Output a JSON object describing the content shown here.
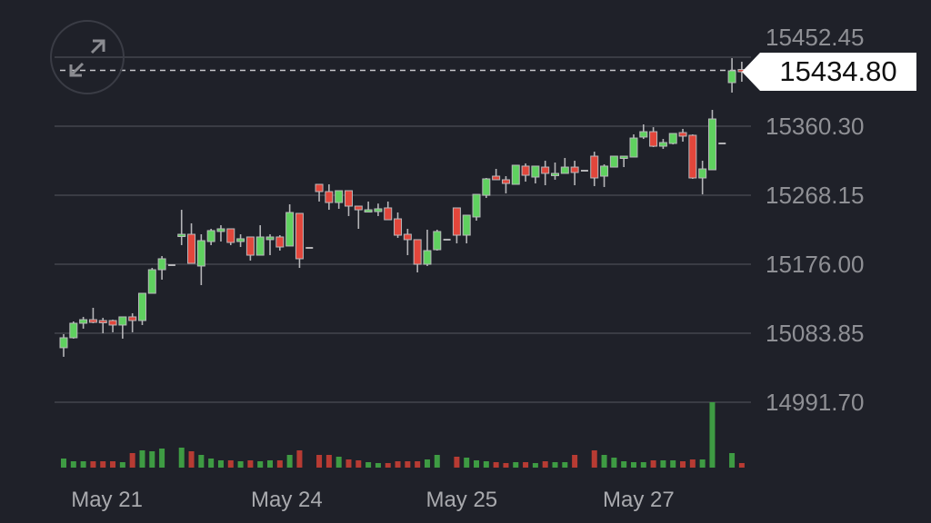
{
  "chart_data": {
    "type": "candlestick",
    "title": "",
    "colors": {
      "up": "#5fd15f",
      "down": "#e2463b",
      "wick": "#b5b5b8",
      "volume_up": "#3e9b43",
      "volume_down": "#b73b33",
      "grid": "#44464e",
      "background": "#1f2129"
    },
    "y_ticks": [
      "15452.45",
      "15360.30",
      "15268.15",
      "15176.00",
      "15083.85",
      "14991.70"
    ],
    "y_tick_values": [
      15452.45,
      15360.3,
      15268.15,
      15176.0,
      15083.85,
      14991.7
    ],
    "x_ticks": [
      {
        "label": "May 21",
        "index": 4.4
      },
      {
        "label": "May 24",
        "index": 22.7
      },
      {
        "label": "May 25",
        "index": 40.5
      },
      {
        "label": "May 27",
        "index": 58.5
      }
    ],
    "last_price": "15434.80",
    "last_price_value": 15434.8,
    "candles_ohlc": [
      [
        15064.5,
        15082.6,
        15052.4,
        15077.8
      ],
      [
        15077.8,
        15099.6,
        15076.6,
        15097.2
      ],
      [
        15097.2,
        15105.7,
        15089.9,
        15102.0
      ],
      [
        15102.0,
        15117.8,
        15097.2,
        15098.4
      ],
      [
        15100.8,
        15104.4,
        15083.8,
        15099.6
      ],
      [
        15100.8,
        15102.0,
        15085.1,
        15094.8
      ],
      [
        15094.8,
        15105.7,
        15076.6,
        15105.7
      ],
      [
        15105.7,
        15110.5,
        15085.1,
        15100.8
      ],
      [
        15100.8,
        15137.2,
        15094.8,
        15137.2
      ],
      [
        15137.2,
        15171.1,
        15137.2,
        15168.7
      ],
      [
        15168.7,
        15186.9,
        15155.4,
        15183.3
      ],
      [
        15174.8,
        15174.8,
        15174.8,
        15174.8
      ],
      [
        15214.8,
        15248.7,
        15201.5,
        15216.0
      ],
      [
        15216.0,
        15230.6,
        15177.2,
        15177.2
      ],
      [
        15173.6,
        15216.0,
        15148.1,
        15207.5
      ],
      [
        15206.3,
        15223.3,
        15201.5,
        15220.9
      ],
      [
        15219.7,
        15228.1,
        15206.3,
        15223.3
      ],
      [
        15223.3,
        15223.3,
        15201.5,
        15205.1
      ],
      [
        15206.3,
        15216.0,
        15199.0,
        15210.0
      ],
      [
        15212.4,
        15212.4,
        15180.8,
        15188.1
      ],
      [
        15188.1,
        15228.1,
        15188.1,
        15212.4
      ],
      [
        15208.8,
        15216.0,
        15188.1,
        15212.4
      ],
      [
        15212.4,
        15214.8,
        15194.2,
        15199.0
      ],
      [
        15200.3,
        15256.0,
        15200.3,
        15245.1
      ],
      [
        15243.9,
        15243.9,
        15171.1,
        15183.3
      ],
      [
        15197.8,
        15197.8,
        15197.8,
        15197.8
      ],
      [
        15282.7,
        15282.7,
        15259.7,
        15273.0
      ],
      [
        15273.0,
        15282.7,
        15248.7,
        15258.4
      ],
      [
        15258.4,
        15274.2,
        15250.0,
        15274.2
      ],
      [
        15274.2,
        15274.2,
        15240.3,
        15253.6
      ],
      [
        15253.6,
        15253.6,
        15223.3,
        15248.7
      ],
      [
        15248.7,
        15259.7,
        15246.3,
        15248.7
      ],
      [
        15246.3,
        15257.0,
        15240.3,
        15250.0
      ],
      [
        15251.2,
        15259.7,
        15235.4,
        15235.4
      ],
      [
        15236.6,
        15245.1,
        15211.2,
        15214.8
      ],
      [
        15216.0,
        15223.3,
        15188.1,
        15208.8
      ],
      [
        15208.8,
        15208.8,
        15165.1,
        15176.0
      ],
      [
        15176.0,
        15222.1,
        15173.6,
        15194.2
      ],
      [
        15195.4,
        15222.1,
        15194.2,
        15219.7
      ],
      [
        15208.8,
        15208.8,
        15208.8,
        15208.8
      ],
      [
        15251.2,
        15251.2,
        15203.9,
        15214.8
      ],
      [
        15214.8,
        15241.5,
        15203.9,
        15241.5
      ],
      [
        15239.1,
        15269.3,
        15234.2,
        15269.3
      ],
      [
        15268.1,
        15291.2,
        15264.5,
        15290.0
      ],
      [
        15293.6,
        15303.3,
        15288.8,
        15288.8
      ],
      [
        15288.8,
        15293.6,
        15270.6,
        15283.9
      ],
      [
        15282.7,
        15308.2,
        15282.7,
        15308.2
      ],
      [
        15307.0,
        15310.6,
        15286.3,
        15294.8
      ],
      [
        15292.4,
        15307.0,
        15283.9,
        15307.0
      ],
      [
        15305.7,
        15314.2,
        15281.5,
        15297.3
      ],
      [
        15294.8,
        15311.8,
        15288.8,
        15297.3
      ],
      [
        15297.3,
        15317.9,
        15302.1,
        15305.7
      ],
      [
        15305.7,
        15314.2,
        15281.5,
        15298.5
      ],
      [
        15300.9,
        15300.9,
        15300.9,
        15300.9
      ],
      [
        15320.3,
        15326.3,
        15280.3,
        15291.2
      ],
      [
        15293.6,
        15309.4,
        15279.1,
        15307.0
      ],
      [
        15305.7,
        15320.3,
        15305.7,
        15320.3
      ],
      [
        15319.1,
        15320.3,
        15305.7,
        15320.3
      ],
      [
        15319.1,
        15349.4,
        15319.1,
        15344.5
      ],
      [
        15345.8,
        15362.7,
        15343.3,
        15353.0
      ],
      [
        15353.0,
        15359.0,
        15332.4,
        15333.6
      ],
      [
        15333.6,
        15343.3,
        15330.0,
        15338.5
      ],
      [
        15337.3,
        15350.6,
        15336.0,
        15350.6
      ],
      [
        15351.8,
        15356.7,
        15339.7,
        15347.0
      ],
      [
        15348.2,
        15349.4,
        15290.0,
        15291.2
      ],
      [
        15291.2,
        15314.2,
        15269.3,
        15303.3
      ],
      [
        15302.1,
        15382.1,
        15302.1,
        15370.0
      ],
      [
        15337.3,
        15337.3,
        15337.3,
        15337.3
      ],
      [
        15418.5,
        15451.2,
        15405.2,
        15434.3
      ],
      [
        15436.0,
        15446.4,
        15419.7,
        15434.8
      ]
    ],
    "volume_relative": [
      10,
      7,
      7,
      7,
      7,
      7,
      6,
      16,
      19,
      18,
      21,
      0,
      22,
      18,
      14,
      10,
      8,
      8,
      7,
      8,
      7,
      8,
      8,
      14,
      19,
      0,
      14,
      14,
      12,
      9,
      8,
      6,
      5,
      5,
      7,
      7,
      7,
      9,
      14,
      0,
      12,
      11,
      8,
      7,
      6,
      5,
      6,
      6,
      5,
      7,
      6,
      6,
      14,
      0,
      19,
      14,
      11,
      7,
      6,
      6,
      8,
      8,
      8,
      7,
      9,
      9,
      72,
      0,
      16,
      5
    ],
    "volume_max_reference": 72
  },
  "controls": {
    "expand_icon": "expand-arrows-icon"
  }
}
